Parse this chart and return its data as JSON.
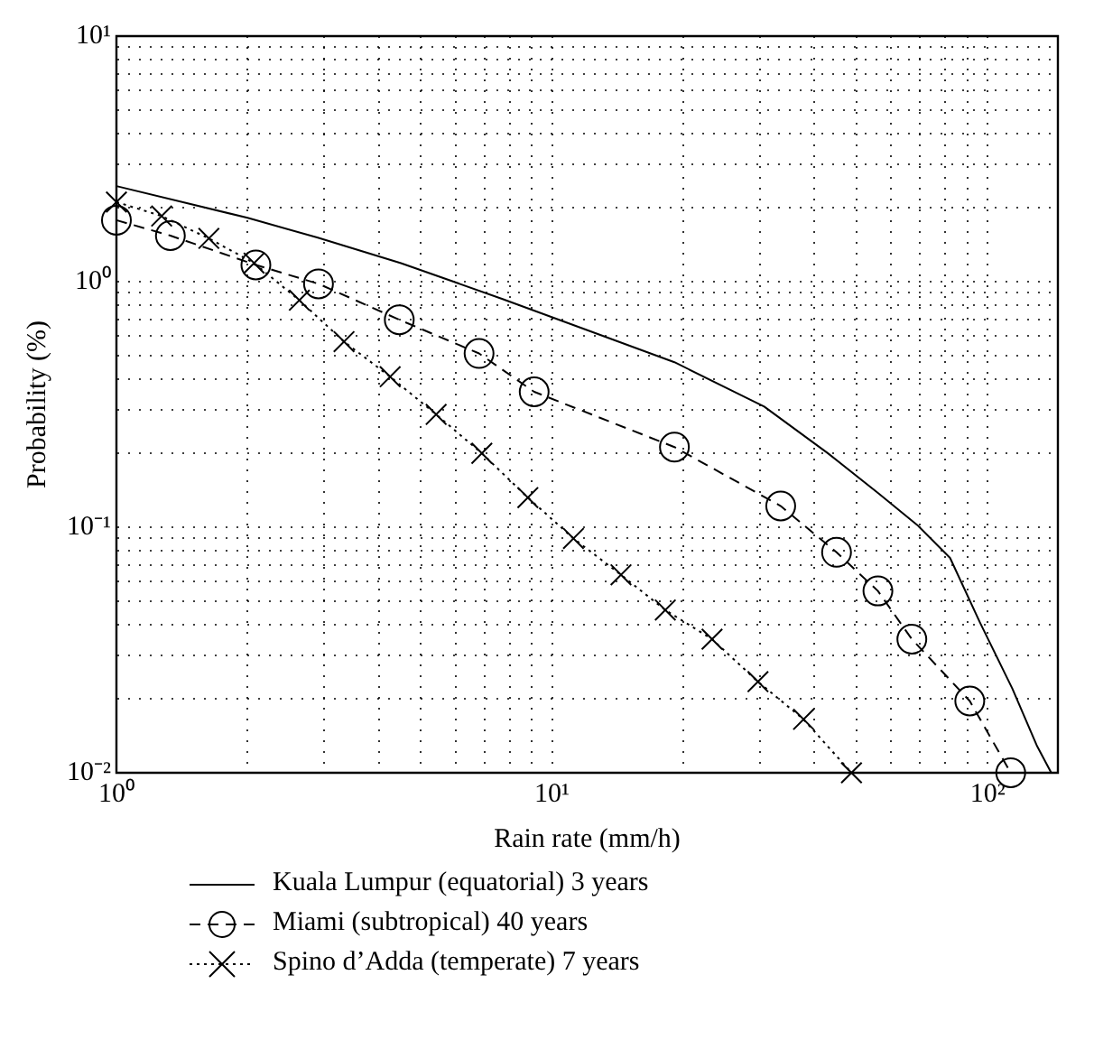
{
  "chart_data": {
    "type": "line",
    "xlabel": "Rain rate (mm/h)",
    "ylabel": "Probability (%)",
    "log": "xy",
    "grid": true,
    "legend": "bottom left",
    "xlim": [
      1,
      145
    ],
    "ylim": [
      0.01,
      10
    ],
    "xticks": [
      {
        "value": 1,
        "label": "10⁰"
      },
      {
        "value": 2,
        "label": null
      },
      {
        "value": 3,
        "label": null
      },
      {
        "value": 4,
        "label": null
      },
      {
        "value": 5,
        "label": null
      },
      {
        "value": 6,
        "label": null
      },
      {
        "value": 7,
        "label": null
      },
      {
        "value": 8,
        "label": null
      },
      {
        "value": 9,
        "label": null
      },
      {
        "value": 10,
        "label": "10¹"
      },
      {
        "value": 20,
        "label": null
      },
      {
        "value": 30,
        "label": null
      },
      {
        "value": 40,
        "label": null
      },
      {
        "value": 50,
        "label": null
      },
      {
        "value": 60,
        "label": null
      },
      {
        "value": 70,
        "label": null
      },
      {
        "value": 80,
        "label": null
      },
      {
        "value": 90,
        "label": null
      },
      {
        "value": 100,
        "label": "10²"
      }
    ],
    "yticks": [
      {
        "value": 0.01,
        "label": "10⁻²"
      },
      {
        "value": 0.02,
        "label": null
      },
      {
        "value": 0.03,
        "label": null
      },
      {
        "value": 0.04,
        "label": null
      },
      {
        "value": 0.05,
        "label": null
      },
      {
        "value": 0.06,
        "label": null
      },
      {
        "value": 0.07,
        "label": null
      },
      {
        "value": 0.08,
        "label": null
      },
      {
        "value": 0.09,
        "label": null
      },
      {
        "value": 0.1,
        "label": "10⁻¹"
      },
      {
        "value": 0.2,
        "label": null
      },
      {
        "value": 0.3,
        "label": null
      },
      {
        "value": 0.4,
        "label": null
      },
      {
        "value": 0.5,
        "label": null
      },
      {
        "value": 0.6,
        "label": null
      },
      {
        "value": 0.7,
        "label": null
      },
      {
        "value": 0.8,
        "label": null
      },
      {
        "value": 0.9,
        "label": null
      },
      {
        "value": 1,
        "label": "10⁰"
      },
      {
        "value": 2,
        "label": null
      },
      {
        "value": 3,
        "label": null
      },
      {
        "value": 4,
        "label": null
      },
      {
        "value": 5,
        "label": null
      },
      {
        "value": 6,
        "label": null
      },
      {
        "value": 7,
        "label": null
      },
      {
        "value": 8,
        "label": null
      },
      {
        "value": 9,
        "label": null
      },
      {
        "value": 10,
        "label": "10¹"
      }
    ],
    "series": [
      {
        "name": "Kuala Lumpur (equatorial) 3 years",
        "color": "#000000",
        "marker": "none",
        "line_style": "solid",
        "x": [
          1,
          2,
          2.9,
          4.5,
          7.7,
          11.9,
          19.1,
          30.7,
          43,
          56,
          69,
          82,
          96,
          114,
          130,
          140
        ],
        "values": [
          2.45,
          1.82,
          1.51,
          1.19,
          0.85,
          0.64,
          0.47,
          0.31,
          0.2,
          0.138,
          0.102,
          0.075,
          0.041,
          0.022,
          0.0128,
          0.01
        ]
      },
      {
        "name": "Miami (subtropical) 40 years",
        "color": "#000000",
        "marker": "circle",
        "line_style": "dashed",
        "x": [
          1,
          1.33,
          2.09,
          2.91,
          4.46,
          6.8,
          9.1,
          19.1,
          33.5,
          45,
          56,
          67,
          91,
          113
        ],
        "values": [
          1.78,
          1.54,
          1.17,
          0.98,
          0.7,
          0.51,
          0.356,
          0.212,
          0.122,
          0.079,
          0.055,
          0.035,
          0.0196,
          0.01
        ]
      },
      {
        "name": "Spino d’Adda (temperate) 7 years",
        "color": "#000000",
        "marker": "cross",
        "line_style": "dotted",
        "x": [
          1,
          1.27,
          1.63,
          2.07,
          2.63,
          3.33,
          4.25,
          5.42,
          6.9,
          8.8,
          11.2,
          14.4,
          18.2,
          23.3,
          29.7,
          37.8,
          48.7
        ],
        "values": [
          2.11,
          1.85,
          1.5,
          1.19,
          0.84,
          0.57,
          0.41,
          0.288,
          0.2,
          0.132,
          0.09,
          0.064,
          0.046,
          0.035,
          0.0235,
          0.0165,
          0.01
        ]
      }
    ]
  }
}
